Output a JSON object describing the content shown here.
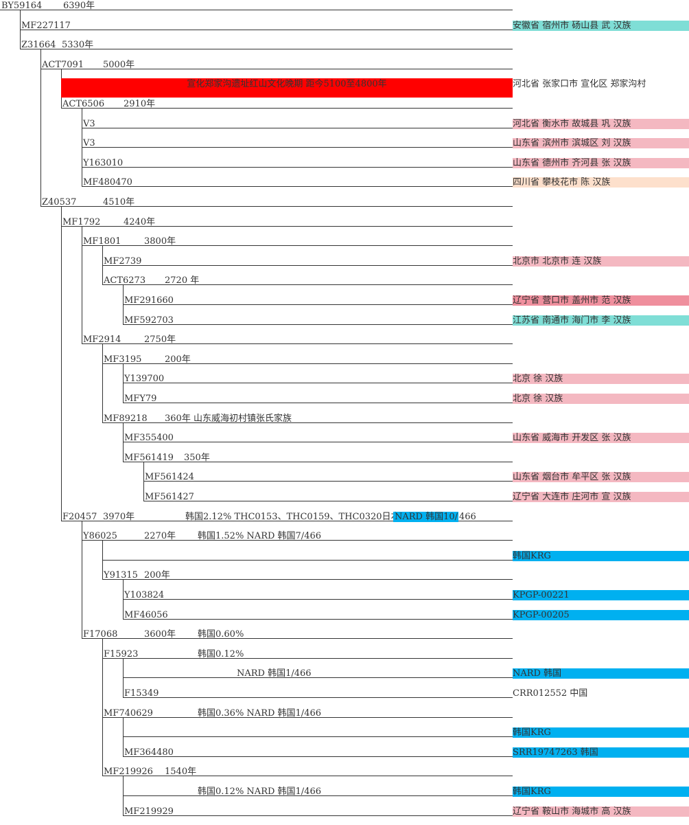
{
  "colors": {
    "line": "#333333",
    "pink": "#f4b8c1",
    "deep_pink": "#ef8f9d",
    "teal": "#7fded6",
    "peach": "#fde0cc",
    "red": "#ff0000",
    "blue": "#00b0f0"
  },
  "rows": [
    {
      "id": "BY59164",
      "parent": null,
      "label": "BY59164",
      "age": "6390年",
      "loc": "",
      "loc_color": null
    },
    {
      "id": "MF227117",
      "parent": "BY59164",
      "label": "MF227117",
      "age": "",
      "loc": "安徽省 宿州市 砀山县 武 汉族",
      "loc_color": "teal"
    },
    {
      "id": "Z31664",
      "parent": "BY59164",
      "label": "Z31664",
      "age": "5330年",
      "loc": "",
      "loc_color": null
    },
    {
      "id": "ACT7091",
      "parent": "Z31664",
      "label": "ACT7091",
      "age": "5000年",
      "loc": "",
      "loc_color": null
    },
    {
      "id": "BAR",
      "parent": "ACT7091",
      "label": "",
      "age": "",
      "bar_text": "宣化郑家沟遗址红山文化晚期 距今5100至4800年",
      "loc": "河北省 张家口市 宣化区 郑家沟村",
      "loc_color": null
    },
    {
      "id": "ACT6506",
      "parent": "ACT7091",
      "label": "ACT6506",
      "age": "2910年",
      "loc": "",
      "loc_color": null
    },
    {
      "id": "V3a",
      "parent": "ACT6506",
      "label": "V3",
      "age": "",
      "loc": "河北省 衡水市 故城县 巩 汉族",
      "loc_color": "pink"
    },
    {
      "id": "V3b",
      "parent": "ACT6506",
      "label": "V3",
      "age": "",
      "loc": "山东省 滨州市 滨城区  刘 汉族",
      "loc_color": "pink"
    },
    {
      "id": "Y163010",
      "parent": "ACT6506",
      "label": "Y163010",
      "age": "",
      "loc": "山东省 德州市 齐河县 张 汉族",
      "loc_color": "pink"
    },
    {
      "id": "MF480470",
      "parent": "ACT6506",
      "label": "MF480470",
      "age": "",
      "loc": "四川省 攀枝花市  陈 汉族",
      "loc_color": "peach"
    },
    {
      "id": "Z40537",
      "parent": "Z31664",
      "label": "Z40537",
      "age": "4510年",
      "loc": "",
      "loc_color": null
    },
    {
      "id": "MF1792",
      "parent": "Z40537",
      "label": "MF1792",
      "age": "4240年",
      "loc": "",
      "loc_color": null
    },
    {
      "id": "MF1801",
      "parent": "MF1792",
      "label": "MF1801",
      "age": "3800年",
      "loc": "",
      "loc_color": null
    },
    {
      "id": "MF2739",
      "parent": "MF1801",
      "label": "MF2739",
      "age": "",
      "loc": "北京市 北京市 连 汉族",
      "loc_color": "pink"
    },
    {
      "id": "ACT6273",
      "parent": "MF1801",
      "label": "ACT6273",
      "age": "2720 年",
      "loc": "",
      "loc_color": null
    },
    {
      "id": "MF291660",
      "parent": "ACT6273",
      "label": "MF291660",
      "age": "",
      "loc": "辽宁省 营口市 盖州市  范 汉族",
      "loc_color": "deep_pink"
    },
    {
      "id": "MF592703",
      "parent": "ACT6273",
      "label": "MF592703",
      "age": "",
      "loc": "江苏省 南通市 海门市 李 汉族",
      "loc_color": "teal"
    },
    {
      "id": "MF2914",
      "parent": "MF1792",
      "label": "MF2914",
      "age": "2750年",
      "loc": "",
      "loc_color": null
    },
    {
      "id": "MF3195",
      "parent": "MF2914",
      "label": "MF3195",
      "age": "200年",
      "loc": "",
      "loc_color": null
    },
    {
      "id": "Y139700",
      "parent": "MF3195",
      "label": "Y139700",
      "age": "",
      "loc": "北京 徐 汉族",
      "loc_color": "pink"
    },
    {
      "id": "MFY79",
      "parent": "MF3195",
      "label": "MFY79",
      "age": "",
      "loc": "北京 徐 汉族",
      "loc_color": "pink"
    },
    {
      "id": "MF89218",
      "parent": "MF2914",
      "label": "MF89218",
      "age": "360年 山东威海初村镇张氏家族",
      "loc": "",
      "loc_color": null
    },
    {
      "id": "MF355400",
      "parent": "MF89218",
      "label": "MF355400",
      "age": "",
      "loc": "山东省 威海市 开发区 张 汉族",
      "loc_color": "pink"
    },
    {
      "id": "MF561419",
      "parent": "MF89218",
      "label": "MF561419",
      "age": "350年",
      "loc": "",
      "loc_color": null
    },
    {
      "id": "MF561424",
      "parent": "MF561419",
      "label": "MF561424",
      "age": "",
      "loc": "山东省 烟台市 牟平区 张 汉族",
      "loc_color": "pink"
    },
    {
      "id": "MF561427",
      "parent": "MF561419",
      "label": "MF561427",
      "age": "",
      "loc": "辽宁省 大连市 庄河市 宣 汉族",
      "loc_color": "pink"
    },
    {
      "id": "F20457",
      "parent": "Z40537",
      "label": "F20457",
      "age": "3970年",
      "note": "韩国2.12% THC0153、THC0159、THC0320日本",
      "hl_text": "NARD 韩国10/",
      "note2": "466",
      "loc": "",
      "loc_color": null
    },
    {
      "id": "Y86025",
      "parent": "F20457",
      "label": "Y86025",
      "age": "2270年",
      "note": "韩国1.52% NARD 韩国7/466",
      "loc": "",
      "loc_color": null
    },
    {
      "id": "Y86025_a",
      "parent": "Y86025",
      "label": "",
      "age": "",
      "loc": "韩国KRG",
      "loc_color": "blue"
    },
    {
      "id": "Y91315",
      "parent": "Y86025",
      "label": "Y91315",
      "age": "200年",
      "loc": "",
      "loc_color": null
    },
    {
      "id": "Y103824",
      "parent": "Y91315",
      "label": "Y103824",
      "age": "",
      "loc": "KPGP-00221",
      "loc_color": "blue"
    },
    {
      "id": "MF46056",
      "parent": "Y91315",
      "label": "MF46056",
      "age": "",
      "loc": "KPGP-00205",
      "loc_color": "blue"
    },
    {
      "id": "F17068",
      "parent": "F20457",
      "label": "F17068",
      "age": "3600年",
      "note": "韩国0.60%",
      "loc": "",
      "loc_color": null
    },
    {
      "id": "F15923",
      "parent": "F17068",
      "label": "F15923",
      "age": "",
      "note": "韩国0.12%",
      "loc": "",
      "loc_color": null
    },
    {
      "id": "F15923_a",
      "parent": "F15923",
      "label": "",
      "age": "",
      "note": "NARD 韩国1/466",
      "loc": "NARD 韩国",
      "loc_color": "blue"
    },
    {
      "id": "F15349",
      "parent": "F15923",
      "label": "F15349",
      "age": "",
      "loc": "CRR012552 中国",
      "loc_color": null
    },
    {
      "id": "MF740629",
      "parent": "F17068",
      "label": "MF740629",
      "age": "",
      "note": "韩国0.36% NARD 韩国1/466",
      "loc": "",
      "loc_color": null
    },
    {
      "id": "MF740629_a",
      "parent": "MF740629",
      "label": "",
      "age": "",
      "loc": "韩国KRG",
      "loc_color": "blue"
    },
    {
      "id": "MF364480",
      "parent": "MF740629",
      "label": "MF364480",
      "age": "",
      "loc": "SRR19747263 韩国",
      "loc_color": "blue"
    },
    {
      "id": "MF219926",
      "parent": "F17068",
      "label": "MF219926",
      "age": "1540年",
      "loc": "",
      "loc_color": null
    },
    {
      "id": "MF219926_a",
      "parent": "MF219926",
      "label": "",
      "age": "",
      "note": "韩国0.12% NARD 韩国1/466",
      "loc": "韩国KRG",
      "loc_color": "blue"
    },
    {
      "id": "MF219929",
      "parent": "MF219926",
      "label": "MF219929",
      "age": "",
      "loc": "辽宁省 鞍山市 海城市 高 汉族",
      "loc_color": "pink"
    }
  ]
}
